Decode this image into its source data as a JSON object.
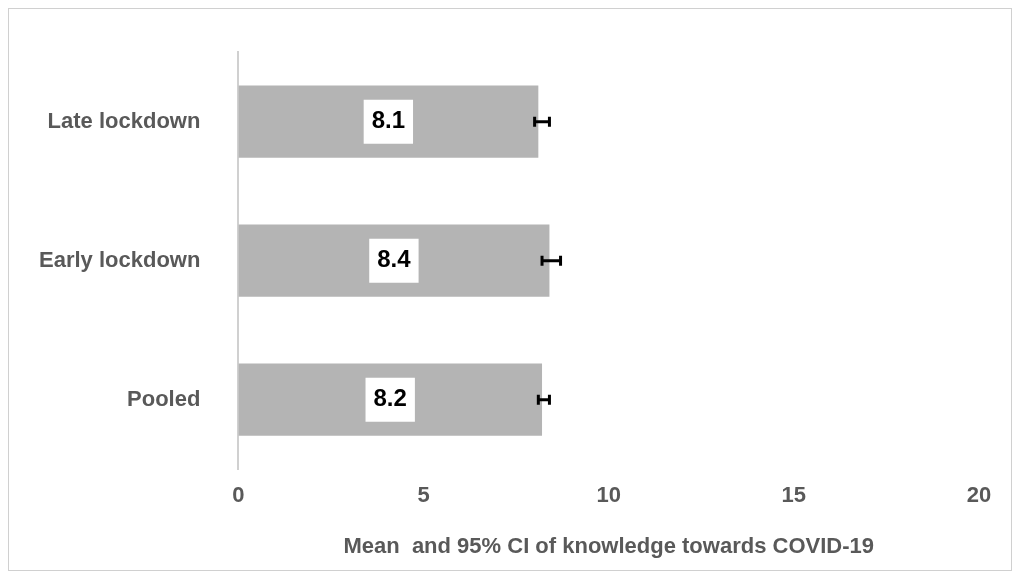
{
  "chart_data": {
    "type": "bar",
    "orientation": "horizontal",
    "categories": [
      "Late lockdown",
      "Early lockdown",
      "Pooled"
    ],
    "values": [
      8.1,
      8.4,
      8.2
    ],
    "errors": [
      [
        8.0,
        8.4
      ],
      [
        8.2,
        8.7
      ],
      [
        8.1,
        8.4
      ]
    ],
    "color": "#b4b4b4",
    "xlim": [
      0,
      20
    ],
    "xticks": [
      0,
      5,
      10,
      15,
      20
    ],
    "xlabel": "Mean  and 95% CI of knowledge towards COVID-19",
    "grid": false,
    "data_labels": true,
    "legend": false
  }
}
